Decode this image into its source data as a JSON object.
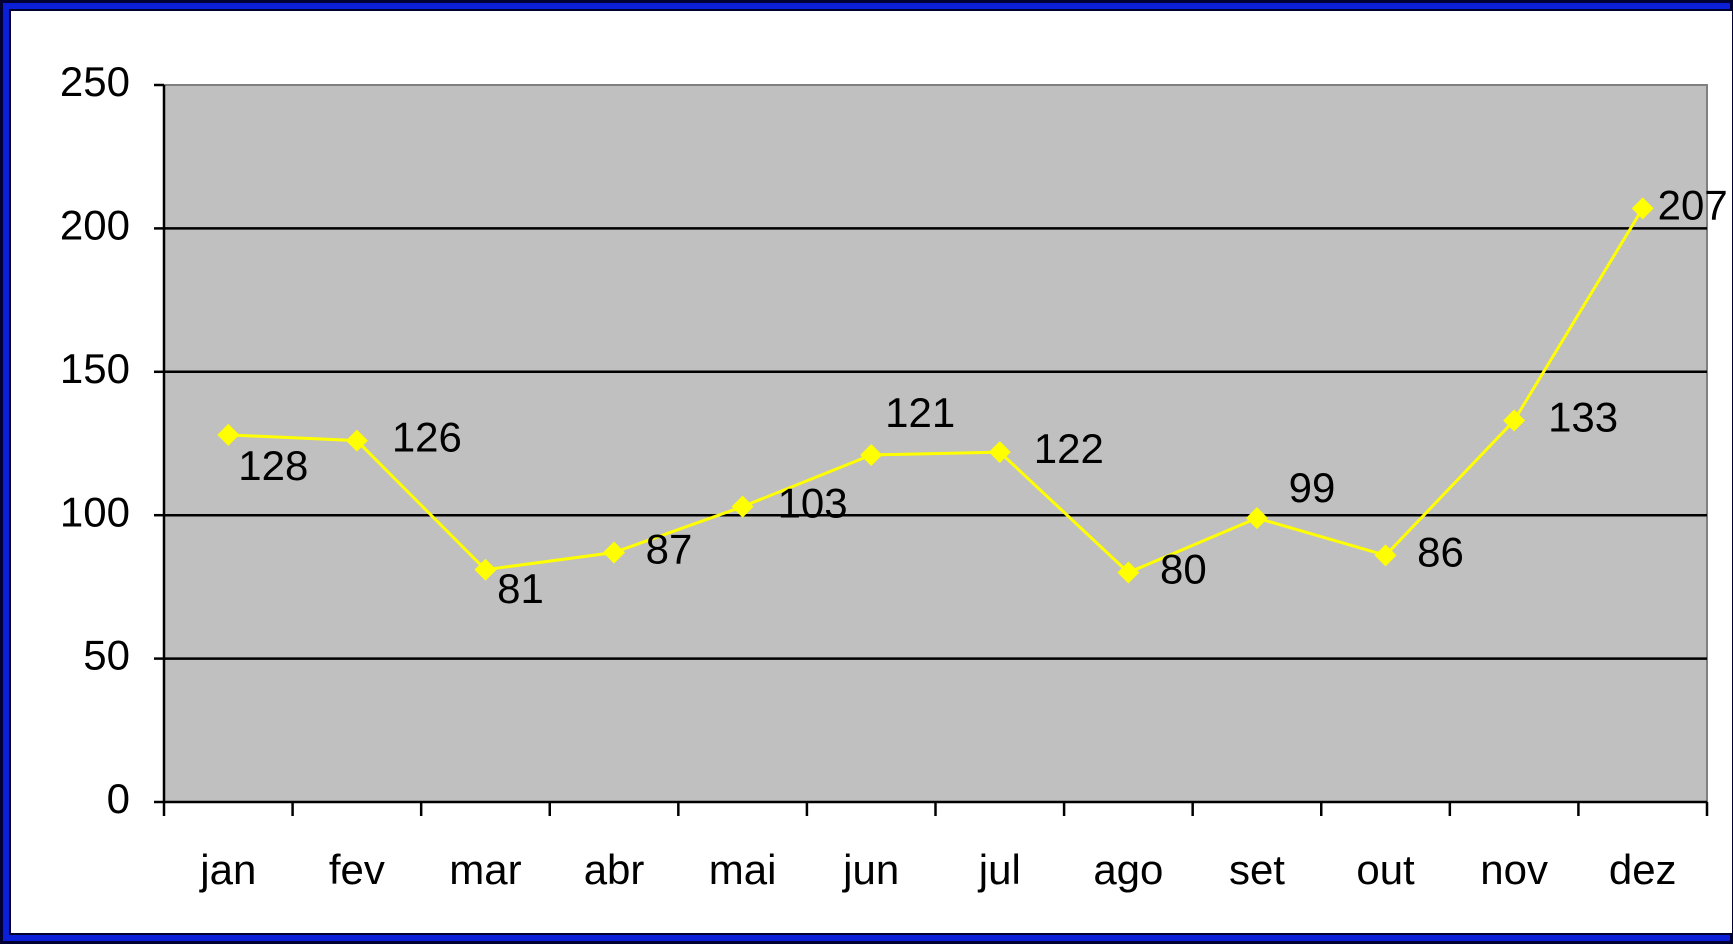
{
  "chart_data": {
    "type": "line",
    "categories": [
      "jan",
      "fev",
      "mar",
      "abr",
      "mai",
      "jun",
      "jul",
      "ago",
      "set",
      "out",
      "nov",
      "dez"
    ],
    "series": [
      {
        "color": "#ffff00",
        "values": [
          128,
          126,
          81,
          87,
          103,
          121,
          122,
          80,
          99,
          86,
          133,
          207
        ]
      }
    ],
    "ylim": [
      0,
      250
    ],
    "yticks": [
      0,
      50,
      100,
      150,
      200,
      250
    ],
    "grid": true
  }
}
